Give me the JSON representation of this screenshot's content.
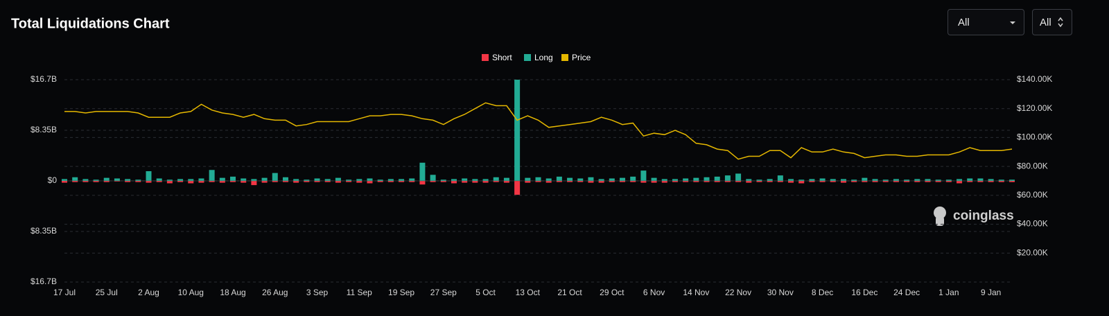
{
  "header": {
    "title": "Total Liquidations Chart",
    "filters": [
      "All",
      "All"
    ]
  },
  "watermark": "coinglass",
  "chart_data": {
    "type": "bar",
    "categories": [
      "17 Jul",
      null,
      null,
      null,
      "25 Jul",
      null,
      null,
      null,
      "2 Aug",
      null,
      null,
      null,
      "10 Aug",
      null,
      null,
      null,
      "18 Aug",
      null,
      null,
      null,
      "26 Aug",
      null,
      null,
      null,
      "3 Sep",
      null,
      null,
      null,
      "11 Sep",
      null,
      null,
      null,
      "19 Sep",
      null,
      null,
      null,
      "27 Sep",
      null,
      null,
      null,
      "5 Oct",
      null,
      null,
      null,
      "13 Oct",
      null,
      null,
      null,
      "21 Oct",
      null,
      null,
      null,
      "29 Oct",
      null,
      null,
      null,
      "6 Nov",
      null,
      null,
      null,
      "14 Nov",
      null,
      null,
      null,
      "22 Nov",
      null,
      null,
      null,
      "30 Nov",
      null,
      null,
      null,
      "8 Dec",
      null,
      null,
      null,
      "16 Dec",
      null,
      null,
      null,
      "24 Dec",
      null,
      null,
      null,
      "1 Jan",
      null,
      null,
      null,
      "9 Jan",
      null,
      null
    ],
    "series": [
      {
        "name": "Short",
        "color": "#f23645",
        "values": [
          -0.3,
          -0.2,
          -0.2,
          -0.2,
          -0.2,
          -0.1,
          -0.2,
          -0.2,
          -0.3,
          -0.2,
          -0.4,
          -0.2,
          -0.4,
          -0.3,
          -0.2,
          -0.3,
          -0.2,
          -0.3,
          -0.7,
          -0.3,
          -0.2,
          -0.2,
          -0.3,
          -0.2,
          -0.2,
          -0.2,
          -0.3,
          -0.2,
          -0.3,
          -0.4,
          -0.2,
          -0.2,
          -0.2,
          -0.2,
          -0.6,
          -0.2,
          -0.2,
          -0.4,
          -0.3,
          -0.3,
          -0.3,
          -0.2,
          -0.3,
          -2.3,
          -0.3,
          -0.2,
          -0.3,
          -0.2,
          -0.2,
          -0.2,
          -0.3,
          -0.3,
          -0.2,
          -0.2,
          -0.2,
          -0.3,
          -0.3,
          -0.3,
          -0.2,
          -0.2,
          -0.2,
          -0.2,
          -0.2,
          -0.2,
          -0.2,
          -0.3,
          -0.2,
          -0.2,
          -0.2,
          -0.3,
          -0.4,
          -0.2,
          -0.2,
          -0.2,
          -0.3,
          -0.2,
          -0.2,
          -0.2,
          -0.2,
          -0.2,
          -0.2,
          -0.2,
          -0.2,
          -0.2,
          -0.2,
          -0.4,
          -0.2,
          -0.2,
          -0.2,
          -0.2,
          -0.2
        ]
      },
      {
        "name": "Long",
        "color": "#22ab94",
        "values": [
          0.3,
          0.6,
          0.3,
          0.2,
          0.5,
          0.4,
          0.3,
          0.2,
          1.6,
          0.4,
          0.2,
          0.3,
          0.3,
          0.4,
          1.8,
          0.5,
          0.7,
          0.4,
          0.3,
          0.5,
          1.3,
          0.6,
          0.3,
          0.2,
          0.4,
          0.3,
          0.5,
          0.2,
          0.3,
          0.4,
          0.2,
          0.3,
          0.3,
          0.4,
          3.0,
          1.0,
          0.2,
          0.3,
          0.4,
          0.3,
          0.3,
          0.6,
          0.5,
          16.7,
          0.5,
          0.6,
          0.4,
          0.7,
          0.5,
          0.4,
          0.6,
          0.3,
          0.4,
          0.5,
          0.7,
          1.7,
          0.5,
          0.3,
          0.3,
          0.4,
          0.5,
          0.6,
          0.7,
          0.9,
          1.2,
          0.3,
          0.2,
          0.3,
          0.9,
          0.3,
          0.2,
          0.3,
          0.4,
          0.3,
          0.3,
          0.2,
          0.5,
          0.3,
          0.2,
          0.3,
          0.2,
          0.3,
          0.3,
          0.2,
          0.2,
          0.3,
          0.4,
          0.4,
          0.3,
          0.2,
          0.2
        ]
      },
      {
        "name": "Price",
        "color": "#e6b800",
        "type": "line",
        "axis": "y2",
        "values": [
          118000,
          118000,
          117000,
          118000,
          118000,
          118000,
          118000,
          117000,
          114000,
          114000,
          114000,
          117000,
          118000,
          123000,
          119000,
          117000,
          116000,
          114000,
          116000,
          113000,
          112000,
          112000,
          108000,
          109000,
          111000,
          111000,
          111000,
          111000,
          113000,
          115000,
          115000,
          116000,
          116000,
          115000,
          113000,
          112000,
          109000,
          113000,
          116000,
          120000,
          124000,
          122000,
          122000,
          112000,
          115000,
          112000,
          107000,
          108000,
          109000,
          110000,
          111000,
          114000,
          112000,
          109000,
          110000,
          101000,
          103000,
          102000,
          105000,
          102000,
          96000,
          95000,
          92000,
          91000,
          85000,
          87000,
          87000,
          91000,
          91000,
          86000,
          93000,
          90000,
          90000,
          92000,
          90000,
          89000,
          86000,
          87000,
          88000,
          88000,
          87000,
          87000,
          88000,
          88000,
          88000,
          90000,
          93000,
          91000,
          91000,
          91000,
          92000
        ]
      }
    ],
    "ylim": [
      -16.7,
      16.7
    ],
    "yticks": [
      {
        "value": -16.7,
        "label": "$16.7B"
      },
      {
        "value": -8.35,
        "label": "$8.35B"
      },
      {
        "value": 0,
        "label": "$0"
      },
      {
        "value": 8.35,
        "label": "$8.35B"
      },
      {
        "value": 16.7,
        "label": "$16.7B"
      }
    ],
    "y2lim": [
      0,
      140000
    ],
    "y2ticks": [
      {
        "value": 20000,
        "label": "$20.00K"
      },
      {
        "value": 40000,
        "label": "$40.00K"
      },
      {
        "value": 60000,
        "label": "$60.00K"
      },
      {
        "value": 80000,
        "label": "$80.00K"
      },
      {
        "value": 100000,
        "label": "$100.00K"
      },
      {
        "value": 120000,
        "label": "$120.00K"
      },
      {
        "value": 140000,
        "label": "$140.00K"
      }
    ],
    "grid": true,
    "legend": "top"
  }
}
